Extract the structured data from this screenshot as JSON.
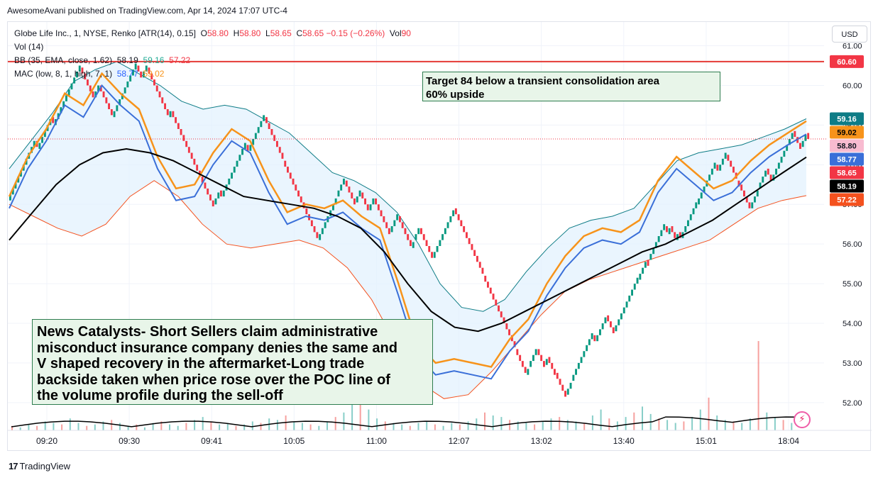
{
  "header": {
    "publisher": "AwesomeAvani published on TradingView.com, Apr 14, 2024 17:07 UTC-4"
  },
  "legend": {
    "symbol": "Globe Life Inc., 1, NYSE, Renko [ATR(14), 0.15]",
    "o_label": "O",
    "o_val": "58.80",
    "h_label": "H",
    "h_val": "58.80",
    "l_label": "L",
    "l_val": "58.65",
    "c_label": "C",
    "c_val": "58.65",
    "change": "−0.15 (−0.26%)",
    "vol_label": "Vol",
    "vol_val": "90",
    "vol_study": "Vol (14)",
    "bb_label": "BB (35, EMA, close, 1.62)",
    "bb_basis": "58.19",
    "bb_upper": "59.16",
    "bb_lower": "57.22",
    "mac_label": "MAC (low, 8, 1, high, 7, 1)",
    "mac_low": "58.77",
    "mac_high": "59.02"
  },
  "currency": "USD",
  "annotations": {
    "top": [
      "Target 84 below a transient consolidation area",
      "60% upside"
    ],
    "bottom": [
      "News Catalysts- Short Sellers claim  administrative",
      "misconduct insurance company denies the same and",
      "V shaped recovery in the aftermarket-Long trade",
      "backside taken when price rose over the POC line of",
      "the volume profile during the sell-off"
    ]
  },
  "brand": "TradingView",
  "colors": {
    "up": "#089981",
    "down": "#f23645",
    "bb_fill": "#e3f2fd",
    "bb_upper": "#0e7c86",
    "bb_lower": "#f4511e",
    "bb_basis": "#000000",
    "mac_high": "#f7931a",
    "mac_low": "#3a6fd8",
    "target_line": "#e53935",
    "vol_up": "#26a69a",
    "vol_down": "#ef5350"
  },
  "chart_data": {
    "type": "renko",
    "brick_size": 0.15,
    "y_range": [
      51.3,
      61.6
    ],
    "price_ticks": [
      "52.00",
      "53.00",
      "54.00",
      "55.00",
      "56.00",
      "57.00",
      "58.00",
      "59.00",
      "60.00",
      "61.00"
    ],
    "time_ticks": [
      "09:20",
      "09:30",
      "09:41",
      "10:05",
      "11:00",
      "12:07",
      "13:02",
      "13:40",
      "15:01",
      "18:04"
    ],
    "target_line": 60.6,
    "price_badges": [
      {
        "value": "60.60",
        "color": "#f23645",
        "text_color": "#ffffff"
      },
      {
        "value": "59.16",
        "color": "#0e7c86",
        "text_color": "#ffffff"
      },
      {
        "value": "59.02",
        "color": "#f7931a",
        "text_color": "#000000"
      },
      {
        "value": "58.80",
        "color": "#f8bbd0",
        "text_color": "#131722"
      },
      {
        "value": "58.77",
        "color": "#3a6fd8",
        "text_color": "#ffffff"
      },
      {
        "value": "58.65",
        "color": "#f23645",
        "text_color": "#ffffff"
      },
      {
        "value": "58.19",
        "color": "#000000",
        "text_color": "#ffffff"
      },
      {
        "value": "57.22",
        "color": "#f4511e",
        "text_color": "#ffffff"
      }
    ],
    "last_price": 58.65,
    "renko_path": [
      57.1,
      58.6,
      58.4,
      59.2,
      59.0,
      60.45,
      59.7,
      60.0,
      59.2,
      60.5,
      60.2,
      60.45,
      59.2,
      59.35,
      58.0,
      57.0,
      57.35,
      57.2,
      58.5,
      58.35,
      59.2,
      58.1,
      56.1,
      57.2,
      57.6,
      57.05,
      57.3,
      56.85,
      57.15,
      56.3,
      56.7,
      55.9,
      56.1,
      56.4,
      55.65,
      56.9,
      55.2,
      53.35,
      52.7,
      52.9,
      53.35,
      52.95,
      53.15,
      52.75,
      52.2,
      52.55,
      53.7,
      53.55,
      54.2,
      53.8,
      55.1,
      55.6,
      55.6,
      56.45,
      56.25,
      56.45,
      56.1,
      56.3,
      56.15,
      56.45,
      57.0,
      57.3,
      58.0,
      57.85,
      58.25,
      57.6,
      57.5,
      56.9,
      57.4,
      57.9,
      57.6,
      58.85,
      58.45,
      58.8,
      58.65
    ],
    "mac_high_path": [
      57.2,
      58.2,
      58.9,
      59.8,
      59.5,
      60.3,
      59.8,
      59.4,
      58.2,
      57.4,
      57.5,
      58.3,
      58.9,
      58.6,
      57.6,
      56.8,
      57.0,
      56.9,
      57.1,
      56.7,
      56.4,
      55.0,
      53.5,
      53.0,
      53.1,
      53.0,
      52.9,
      53.6,
      54.1,
      55.0,
      55.7,
      56.2,
      56.4,
      56.3,
      56.6,
      57.6,
      58.2,
      57.8,
      57.4,
      57.6,
      58.1,
      58.5,
      58.8,
      59.1
    ],
    "mac_low_path": [
      56.9,
      57.9,
      58.6,
      59.5,
      59.2,
      60.0,
      59.5,
      59.1,
      57.9,
      57.1,
      57.2,
      58.0,
      58.6,
      58.3,
      57.3,
      56.5,
      56.7,
      56.6,
      56.8,
      56.4,
      56.1,
      54.7,
      53.2,
      52.7,
      52.8,
      52.7,
      52.6,
      53.3,
      53.8,
      54.7,
      55.4,
      55.9,
      56.1,
      56.0,
      56.3,
      57.3,
      57.9,
      57.5,
      57.1,
      57.3,
      57.8,
      58.2,
      58.5,
      58.77
    ],
    "bb_upper_path": [
      57.9,
      58.6,
      59.3,
      60.1,
      60.4,
      60.6,
      60.3,
      60.0,
      59.6,
      59.4,
      59.5,
      59.4,
      59.1,
      58.8,
      58.3,
      57.8,
      57.6,
      57.3,
      56.8,
      56.0,
      55.0,
      54.4,
      54.3,
      54.6,
      55.3,
      55.9,
      56.4,
      56.6,
      56.7,
      56.9,
      57.5,
      58.1,
      58.3,
      58.4,
      58.5,
      58.7,
      58.9,
      59.16
    ],
    "bb_lower_path": [
      57.0,
      56.7,
      56.4,
      56.2,
      56.5,
      57.2,
      57.6,
      57.2,
      56.5,
      56.0,
      55.9,
      56.0,
      56.1,
      55.9,
      55.4,
      54.6,
      53.5,
      52.5,
      52.1,
      52.2,
      52.8,
      53.5,
      54.2,
      54.8,
      55.1,
      55.3,
      55.5,
      55.7,
      55.9,
      56.1,
      56.5,
      56.9,
      57.1,
      57.22
    ],
    "bb_basis_path": [
      56.1,
      56.8,
      57.5,
      58.0,
      58.3,
      58.4,
      58.3,
      58.1,
      57.8,
      57.5,
      57.2,
      57.1,
      57.0,
      56.9,
      56.7,
      56.4,
      55.8,
      55.0,
      54.3,
      53.9,
      53.8,
      54.0,
      54.3,
      54.6,
      54.9,
      55.2,
      55.5,
      55.8,
      56.0,
      56.3,
      56.6,
      57.0,
      57.4,
      57.8,
      58.19
    ],
    "volume_profile": [
      3,
      2,
      4,
      3,
      6,
      5,
      4,
      8,
      5,
      3,
      4,
      6,
      7,
      5,
      3,
      4,
      2,
      5,
      6,
      4,
      3,
      5,
      7,
      9,
      6,
      4,
      5,
      3,
      4,
      6,
      5,
      8,
      7,
      10,
      6,
      5,
      4,
      3,
      6,
      9,
      12,
      40,
      55,
      14,
      8,
      6,
      5,
      4,
      3,
      5,
      6,
      4,
      3,
      5,
      4,
      6,
      8,
      12,
      10,
      9,
      7,
      6,
      5,
      4,
      6,
      8,
      9,
      7,
      6,
      5,
      10,
      14,
      8,
      6,
      9,
      12,
      16,
      11,
      8,
      7,
      5,
      6,
      9,
      14,
      22,
      10,
      7,
      6,
      5,
      8,
      60,
      12,
      9,
      7,
      5
    ]
  }
}
